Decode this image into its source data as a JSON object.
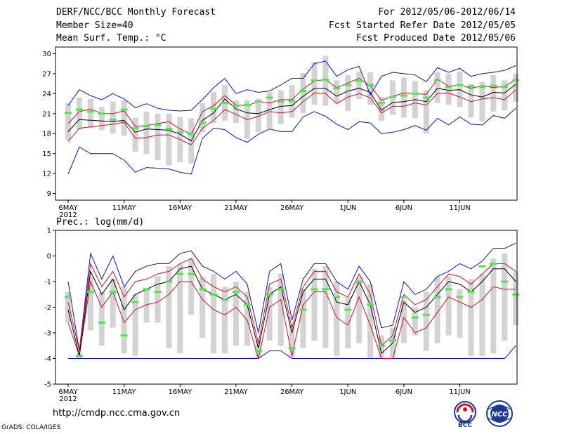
{
  "header": {
    "title": "DERF/NCC/BCC Monthly Forecast",
    "member_size": "Member Size=40",
    "variable": "Mean Surf. Temp.: °C",
    "period": "For 2012/05/06-2012/06/14",
    "refer_date": "Fcst Started Refer Date 2012/05/05",
    "produced_date": "Fcst Produced Date 2012/05/06"
  },
  "footer": {
    "url": "http://cmdp.ncc.cma.gov.cn",
    "credit": "GrADS: COLA/IGES",
    "logo_left": "BCC",
    "logo_right": "NCC"
  },
  "colors": {
    "ensemble_mean": "#000000",
    "spread": "#d0102a",
    "extreme": "#1010c8",
    "observed": "#4ee84e",
    "bar": "#d3d3d3"
  },
  "chart_data": [
    {
      "type": "line",
      "title": "Mean Surf. Temp.: °C",
      "xlabel": "",
      "ylabel": "",
      "x_ticks": [
        "6MAY",
        "11MAY",
        "16MAY",
        "21MAY",
        "26MAY",
        "1JUN",
        "6JUN",
        "11JUN"
      ],
      "x_tick_sub": "2012",
      "ylim": [
        8,
        31
      ],
      "y_ticks": [
        9,
        12,
        15,
        18,
        21,
        24,
        27,
        30
      ],
      "series": [
        {
          "name": "ensemble_mean",
          "values": [
            18.3,
            20.1,
            20.0,
            19.9,
            19.8,
            20.0,
            18.2,
            18.7,
            18.6,
            18.5,
            17.9,
            16.9,
            20.0,
            21.1,
            23.2,
            21.7,
            21.1,
            21.0,
            21.6,
            22.1,
            22.2,
            23.6,
            24.8,
            24.8,
            23.6,
            24.4,
            24.8,
            24.2,
            21.5,
            22.7,
            22.8,
            23.1,
            22.8,
            24.8,
            24.5,
            24.6,
            23.8,
            23.5,
            24.2,
            24.1,
            25.4
          ]
        },
        {
          "name": "upper_spread",
          "values": [
            19.5,
            21.3,
            21.7,
            21.0,
            21.0,
            21.4,
            19.1,
            19.2,
            19.5,
            19.8,
            18.7,
            17.9,
            21.3,
            22.2,
            23.7,
            22.3,
            22.2,
            22.8,
            22.6,
            23.1,
            23.1,
            24.7,
            25.9,
            26.1,
            24.9,
            25.6,
            26.3,
            25.2,
            23.0,
            23.6,
            24.1,
            24.0,
            23.9,
            26.2,
            25.1,
            25.3,
            24.8,
            25.2,
            24.9,
            25.1,
            26.1
          ]
        },
        {
          "name": "lower_spread",
          "values": [
            16.8,
            18.8,
            19.0,
            19.2,
            19.4,
            19.7,
            17.3,
            17.4,
            17.8,
            17.8,
            17.1,
            16.3,
            18.8,
            20.0,
            21.6,
            20.9,
            20.1,
            20.6,
            21.3,
            21.1,
            21.3,
            22.8,
            24.1,
            24.0,
            22.5,
            23.5,
            24.0,
            23.4,
            21.1,
            22.1,
            22.1,
            22.6,
            22.3,
            24.0,
            24.1,
            23.5,
            22.8,
            23.2,
            23.4,
            23.1,
            24.6
          ]
        },
        {
          "name": "ensemble_max",
          "values": [
            22.2,
            24.6,
            23.7,
            23.1,
            24.0,
            23.2,
            21.9,
            22.5,
            21.8,
            21.5,
            21.4,
            21.5,
            23.1,
            24.9,
            26.3,
            24.0,
            24.6,
            24.2,
            24.4,
            25.3,
            26.3,
            26.3,
            28.5,
            28.9,
            26.6,
            27.6,
            28.1,
            23.8,
            26.6,
            27.2,
            27.0,
            26.8,
            25.8,
            27.9,
            27.2,
            27.8,
            26.6,
            27.0,
            27.2,
            27.5,
            28.2
          ]
        },
        {
          "name": "ensemble_min",
          "values": [
            11.9,
            16.0,
            15.0,
            15.0,
            15.0,
            14.0,
            12.2,
            12.9,
            12.8,
            12.7,
            12.2,
            11.9,
            17.3,
            18.8,
            18.6,
            17.4,
            16.7,
            17.9,
            18.7,
            18.3,
            18.3,
            20.5,
            21.3,
            20.6,
            19.4,
            18.6,
            19.8,
            19.6,
            18.0,
            18.2,
            18.6,
            19.2,
            18.5,
            20.3,
            19.3,
            20.5,
            19.4,
            19.3,
            20.7,
            20.3,
            21.8
          ]
        },
        {
          "name": "bar_top",
          "values": [
            22.6,
            23.4,
            23.2,
            22.0,
            22.8,
            23.0,
            20.4,
            21.3,
            21.0,
            21.0,
            20.5,
            20.3,
            22.6,
            24.3,
            25.3,
            23.0,
            23.0,
            23.2,
            24.2,
            24.5,
            25.3,
            27.1,
            28.8,
            29.7,
            26.0,
            26.8,
            27.3,
            27.2,
            23.5,
            26.0,
            26.4,
            25.9,
            24.5,
            27.2,
            27.0,
            27.3,
            25.4,
            25.8,
            26.8,
            26.0,
            27.0
          ]
        },
        {
          "name": "bar_bottom",
          "values": [
            17.0,
            18.6,
            18.8,
            18.5,
            18.0,
            17.7,
            15.3,
            14.9,
            14.0,
            13.2,
            13.7,
            13.5,
            18.2,
            19.6,
            19.9,
            19.6,
            17.2,
            18.2,
            18.8,
            19.4,
            20.4,
            21.1,
            22.3,
            22.2,
            22.6,
            21.4,
            23.2,
            22.3,
            19.9,
            20.8,
            20.4,
            20.3,
            18.0,
            22.6,
            22.3,
            22.0,
            20.4,
            19.8,
            21.3,
            21.5,
            22.8
          ]
        },
        {
          "name": "observed",
          "values": [
            21.1,
            21.6,
            21.3,
            21.0,
            20.1,
            21.6,
            18.8,
            19.1,
            19.3,
            18.7,
            18.2,
            17.9,
            19.6,
            21.7,
            22.6,
            22.2,
            22.3,
            22.8,
            23.4,
            22.8,
            22.9,
            24.4,
            26.0,
            26.1,
            24.8,
            25.3,
            25.9,
            25.3,
            22.6,
            23.5,
            23.7,
            24.0,
            23.4,
            26.0,
            25.0,
            25.3,
            25.1,
            25.0,
            25.2,
            25.0,
            26.0
          ]
        }
      ]
    },
    {
      "type": "line",
      "title": "Prec.: log(mm/d)",
      "xlabel": "",
      "ylabel": "",
      "x_ticks": [
        "6MAY",
        "11MAY",
        "16MAY",
        "21MAY",
        "26MAY",
        "1JUN",
        "6JUN",
        "11JUN"
      ],
      "x_tick_sub": "2012",
      "ylim": [
        -5,
        1
      ],
      "y_ticks": [
        -5,
        -4,
        -3,
        -2,
        -1,
        0,
        1
      ],
      "series": [
        {
          "name": "ensemble_mean",
          "values": [
            -2.1,
            -3.9,
            -0.6,
            -1.5,
            -0.9,
            -2.1,
            -1.5,
            -1.3,
            -1.1,
            -1.0,
            -0.5,
            -0.4,
            -1.3,
            -1.5,
            -1.7,
            -1.5,
            -1.9,
            -3.6,
            -1.5,
            -1.2,
            -3.0,
            -1.4,
            -0.9,
            -0.9,
            -1.8,
            -1.9,
            -1.0,
            -1.9,
            -3.8,
            -3.4,
            -1.8,
            -2.2,
            -2.0,
            -1.5,
            -1.0,
            -1.1,
            -1.4,
            -1.0,
            -0.5,
            -0.5,
            -1.0
          ]
        },
        {
          "name": "upper_spread",
          "values": [
            -1.8,
            -3.7,
            -0.3,
            -1.2,
            -0.6,
            -1.6,
            -1.0,
            -0.9,
            -0.7,
            -0.6,
            -0.3,
            -0.1,
            -0.9,
            -1.2,
            -1.4,
            -1.2,
            -1.6,
            -3.4,
            -1.1,
            -0.9,
            -2.8,
            -1.2,
            -0.6,
            -0.6,
            -1.4,
            -1.6,
            -0.7,
            -1.5,
            -3.5,
            -3.1,
            -1.5,
            -1.9,
            -1.7,
            -1.2,
            -0.7,
            -0.8,
            -1.1,
            -0.7,
            -0.3,
            -0.3,
            -0.6
          ]
        },
        {
          "name": "lower_spread",
          "values": [
            -2.6,
            -3.9,
            -1.0,
            -2.0,
            -1.4,
            -2.6,
            -2.1,
            -1.9,
            -1.8,
            -1.5,
            -1.0,
            -1.0,
            -1.7,
            -2.1,
            -2.3,
            -2.0,
            -2.5,
            -4.0,
            -2.0,
            -1.7,
            -3.9,
            -1.9,
            -1.4,
            -1.4,
            -2.4,
            -2.7,
            -1.6,
            -2.7,
            -4.0,
            -4.0,
            -2.4,
            -3.0,
            -2.8,
            -2.2,
            -1.6,
            -1.8,
            -2.0,
            -1.7,
            -1.2,
            -1.3,
            -1.3
          ]
        },
        {
          "name": "ensemble_max",
          "values": [
            -1.0,
            -3.7,
            0.1,
            -0.9,
            0.0,
            -1.2,
            -0.6,
            -0.4,
            -0.3,
            -0.3,
            0.1,
            0.2,
            -0.4,
            -0.6,
            -0.9,
            -0.6,
            -1.1,
            -3.0,
            -0.6,
            -0.3,
            -2.5,
            -0.9,
            -0.3,
            -0.3,
            -1.0,
            -1.3,
            -0.4,
            -1.0,
            -2.8,
            -2.7,
            -1.0,
            -1.5,
            -1.3,
            -0.8,
            -0.6,
            -0.3,
            -0.5,
            -0.2,
            0.3,
            0.3,
            0.5
          ]
        },
        {
          "name": "ensemble_min",
          "values": [
            -4.0,
            -4.0,
            -4.0,
            -4.0,
            -4.0,
            -4.0,
            -4.0,
            -4.0,
            -4.0,
            -4.0,
            -4.0,
            -4.0,
            -4.0,
            -4.0,
            -4.0,
            -4.0,
            -4.0,
            -4.0,
            -3.7,
            -3.7,
            -4.0,
            -4.0,
            -4.0,
            -4.0,
            -4.0,
            -4.0,
            -4.0,
            -4.0,
            -4.0,
            -4.0,
            -4.0,
            -4.0,
            -4.0,
            -4.0,
            -4.0,
            -4.0,
            -4.0,
            -4.0,
            -4.0,
            -4.0,
            -3.5
          ]
        },
        {
          "name": "bar_top",
          "values": [
            -1.4,
            -3.8,
            -0.8,
            -1.4,
            -0.9,
            -1.2,
            -1.5,
            -1.3,
            -0.8,
            -0.4,
            -0.3,
            -0.1,
            -0.8,
            -0.7,
            -1.2,
            -1.0,
            -1.4,
            -3.3,
            -1.2,
            -0.7,
            -2.7,
            -1.3,
            -0.5,
            -0.4,
            -1.0,
            -1.6,
            -0.8,
            -1.1,
            -3.1,
            -2.8,
            -1.7,
            -2.0,
            -1.4,
            -0.8,
            -0.8,
            -1.3,
            -0.9,
            -0.7,
            -0.1,
            0.1,
            -0.6
          ]
        },
        {
          "name": "bar_bottom",
          "values": [
            -2.6,
            -4.0,
            -2.9,
            -3.5,
            -2.8,
            -3.8,
            -3.9,
            -2.6,
            -2.6,
            -3.6,
            -3.8,
            -2.3,
            -3.2,
            -3.8,
            -3.8,
            -3.5,
            -3.5,
            -4.0,
            -3.3,
            -3.5,
            -4.0,
            -3.6,
            -3.3,
            -3.6,
            -3.9,
            -3.6,
            -3.4,
            -4.0,
            -4.0,
            -4.0,
            -3.4,
            -3.1,
            -3.7,
            -3.4,
            -3.1,
            -3.2,
            -3.9,
            -3.9,
            -3.8,
            -3.3,
            -2.7
          ]
        },
        {
          "name": "observed",
          "values": [
            -1.6,
            -3.9,
            -1.4,
            -2.6,
            -1.4,
            -3.1,
            -1.8,
            -1.3,
            -1.4,
            -1.0,
            -0.7,
            -0.7,
            -1.3,
            -1.5,
            -1.7,
            -1.4,
            -1.9,
            -3.7,
            -1.5,
            -1.3,
            -3.6,
            -2.1,
            -1.3,
            -1.3,
            -1.6,
            -2.1,
            -1.0,
            -1.9,
            -3.5,
            -3.3,
            -1.6,
            -2.4,
            -2.3,
            -1.6,
            -1.3,
            -1.6,
            -1.4,
            -0.4,
            -0.3,
            -1.0,
            -1.5
          ]
        }
      ]
    }
  ]
}
